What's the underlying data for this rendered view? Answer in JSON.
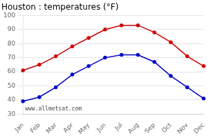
{
  "chart_data": {
    "type": "line",
    "title": "Houston : temperatures (°F)",
    "categories": [
      "Jan",
      "Feb",
      "Mar",
      "Apr",
      "May",
      "Jun",
      "Jul",
      "Aug",
      "Sep",
      "Oct",
      "Nov",
      "Dec"
    ],
    "series": [
      {
        "color": "#cc0000",
        "values": [
          61,
          65,
          71,
          78,
          84,
          90,
          93,
          93,
          88,
          81,
          71,
          64
        ]
      },
      {
        "color": "#0000cc",
        "values": [
          39,
          42,
          49,
          58,
          64,
          70,
          72,
          72,
          67,
          57,
          49,
          41
        ]
      }
    ],
    "ylim": [
      30,
      100
    ],
    "yticks": [
      30,
      40,
      50,
      60,
      70,
      80,
      90,
      100
    ],
    "grid": true,
    "marker": "circle",
    "annotations": [
      "www.allmetsat.com"
    ]
  }
}
